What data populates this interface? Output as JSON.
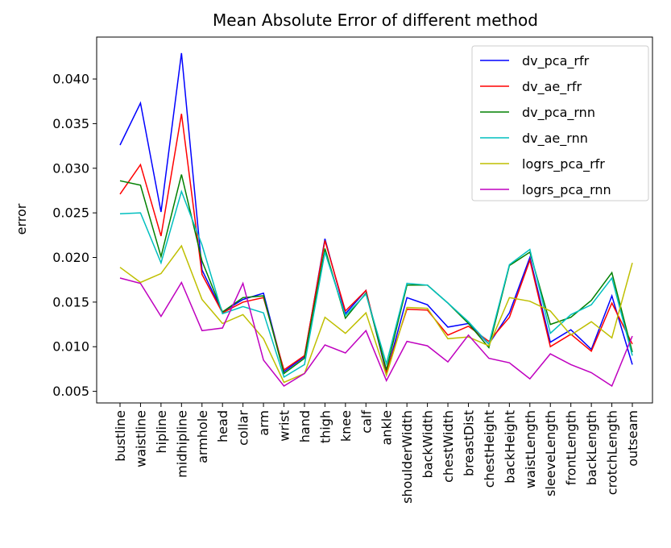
{
  "chart_data": {
    "type": "line",
    "title": "Mean Absolute Error of different method",
    "xlabel": "",
    "ylabel": "error",
    "ylim": [
      0.0037,
      0.0447
    ],
    "yticks": [
      0.005,
      0.01,
      0.015,
      0.02,
      0.025,
      0.03,
      0.035,
      0.04
    ],
    "ytick_labels": [
      "0.005",
      "0.010",
      "0.015",
      "0.020",
      "0.025",
      "0.030",
      "0.035",
      "0.040"
    ],
    "grid": false,
    "legend": "top-right",
    "categories": [
      "bustline",
      "waistline",
      "hipline",
      "midhipline",
      "armhole",
      "head",
      "collar",
      "arm",
      "wrist",
      "hand",
      "thigh",
      "knee",
      "calf",
      "ankle",
      "shoulderWidth",
      "backWidth",
      "chestWidth",
      "breastDist",
      "chestHeight",
      "backHeight",
      "waistLength",
      "sleeveLength",
      "frontLength",
      "backLength",
      "crotchLength",
      "outseam"
    ],
    "series": [
      {
        "name": "dv_pca_rfr",
        "color": "#0000ff",
        "values": [
          0.0326,
          0.0373,
          0.0251,
          0.0429,
          0.0186,
          0.0139,
          0.0153,
          0.016,
          0.0072,
          0.0089,
          0.0221,
          0.0137,
          0.0163,
          0.007,
          0.0155,
          0.0147,
          0.0122,
          0.0126,
          0.0103,
          0.0138,
          0.02,
          0.0105,
          0.0119,
          0.0097,
          0.0157,
          0.008
        ]
      },
      {
        "name": "dv_ae_rfr",
        "color": "#ff0000",
        "values": [
          0.0271,
          0.0304,
          0.0224,
          0.0361,
          0.0181,
          0.0138,
          0.015,
          0.0155,
          0.0074,
          0.009,
          0.0219,
          0.014,
          0.0163,
          0.0072,
          0.0142,
          0.0141,
          0.0113,
          0.0123,
          0.0106,
          0.0133,
          0.0197,
          0.01,
          0.0114,
          0.0095,
          0.0149,
          0.0103
        ]
      },
      {
        "name": "dv_pca_rnn",
        "color": "#008000",
        "values": [
          0.0286,
          0.0281,
          0.0201,
          0.0293,
          0.0196,
          0.0139,
          0.0155,
          0.0157,
          0.007,
          0.0087,
          0.021,
          0.0132,
          0.016,
          0.0074,
          0.0169,
          0.0169,
          0.0149,
          0.0126,
          0.0099,
          0.0191,
          0.0206,
          0.0125,
          0.0133,
          0.0152,
          0.0183,
          0.0094
        ]
      },
      {
        "name": "dv_ae_rnn",
        "color": "#00bfbf",
        "values": [
          0.0249,
          0.025,
          0.0194,
          0.0274,
          0.0214,
          0.0137,
          0.0145,
          0.0138,
          0.0066,
          0.008,
          0.0206,
          0.0135,
          0.0159,
          0.0081,
          0.0171,
          0.0169,
          0.0149,
          0.0128,
          0.0103,
          0.0192,
          0.0209,
          0.0115,
          0.0136,
          0.0147,
          0.0177,
          0.009
        ]
      },
      {
        "name": "logrs_pca_rfr",
        "color": "#bfbf00",
        "values": [
          0.0189,
          0.0172,
          0.0182,
          0.0213,
          0.0153,
          0.0126,
          0.0136,
          0.0109,
          0.006,
          0.007,
          0.0133,
          0.0115,
          0.0138,
          0.0068,
          0.0144,
          0.0143,
          0.0109,
          0.0111,
          0.0101,
          0.0155,
          0.0151,
          0.014,
          0.0113,
          0.0128,
          0.011,
          0.0194
        ]
      },
      {
        "name": "logrs_pca_rnn",
        "color": "#bf00bf",
        "values": [
          0.0177,
          0.0171,
          0.0134,
          0.0172,
          0.0118,
          0.0121,
          0.0171,
          0.0085,
          0.0056,
          0.007,
          0.0102,
          0.0093,
          0.0118,
          0.0062,
          0.0106,
          0.0101,
          0.0083,
          0.0113,
          0.0087,
          0.0082,
          0.0064,
          0.0092,
          0.008,
          0.0071,
          0.0056,
          0.0112
        ]
      }
    ]
  }
}
